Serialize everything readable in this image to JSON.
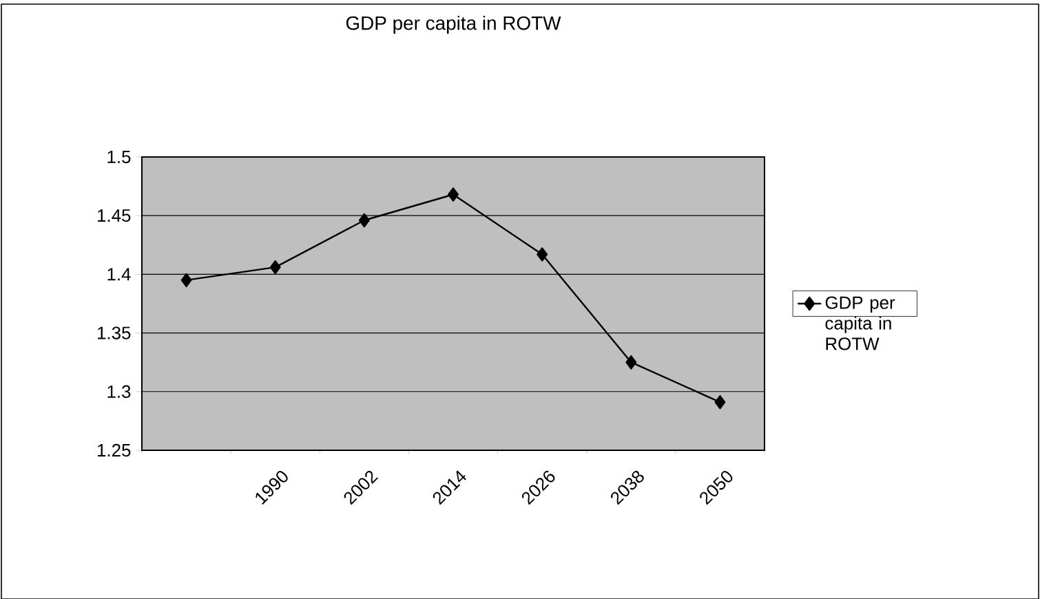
{
  "chart_data": {
    "type": "line",
    "title": "GDP per capita in ROTW",
    "categories": [
      null,
      "1990",
      "2002",
      "2014",
      "2026",
      "2038",
      "2050"
    ],
    "series": [
      {
        "name": "GDP per capita in ROTW",
        "color": "#000000",
        "values": [
          1.395,
          1.406,
          1.446,
          1.468,
          1.417,
          1.325,
          1.291
        ]
      }
    ],
    "ylim": [
      1.25,
      1.5
    ],
    "yticks": [
      1.25,
      1.3,
      1.35,
      1.4,
      1.45,
      1.5
    ],
    "grid": "y",
    "legend": "right",
    "marker": "diamond",
    "line_style": "solid"
  }
}
